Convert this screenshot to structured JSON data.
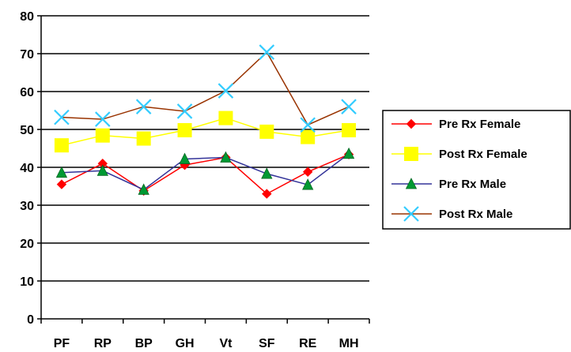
{
  "chart_data": {
    "type": "line",
    "title": "",
    "xlabel": "",
    "ylabel": "",
    "categories": [
      "PF",
      "RP",
      "BP",
      "GH",
      "Vt",
      "SF",
      "RE",
      "MH"
    ],
    "ylim": [
      0,
      80
    ],
    "yticks": [
      0,
      10,
      20,
      30,
      40,
      50,
      60,
      70,
      80
    ],
    "grid": "horizontal",
    "legend_position": "right",
    "series": [
      {
        "name": "Pre Rx Female",
        "color": "#FF0000",
        "marker": "diamond",
        "values": [
          35.5,
          41.0,
          33.8,
          40.6,
          42.6,
          33.0,
          38.8,
          43.4
        ]
      },
      {
        "name": "Post Rx Female",
        "color": "#FFFF00",
        "marker": "square",
        "values": [
          45.8,
          48.4,
          47.6,
          49.8,
          53.0,
          49.4,
          48.0,
          49.8
        ]
      },
      {
        "name": "Pre Rx Male",
        "color": "#333399",
        "marker": "triangle",
        "values": [
          38.6,
          39.1,
          34.1,
          42.2,
          42.6,
          38.3,
          35.4,
          43.6
        ]
      },
      {
        "name": "Post Rx Male",
        "color": "#993300",
        "marker": "x",
        "values": [
          53.2,
          52.7,
          56.0,
          54.8,
          60.2,
          70.4,
          51.2,
          56.0
        ]
      }
    ]
  }
}
